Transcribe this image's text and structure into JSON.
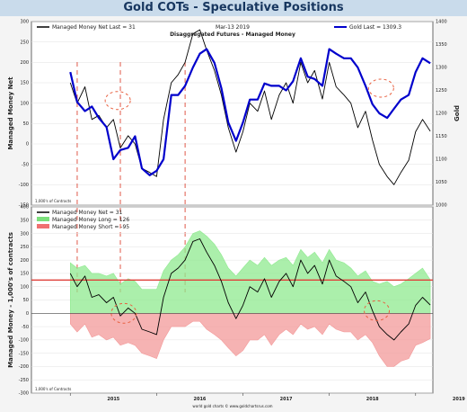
{
  "header": {
    "title": "Gold COTs - Speculative Positions"
  },
  "chart_data": [
    {
      "type": "line",
      "panel": "top",
      "subtitle": "Disaggregated Futures - Managed Money",
      "date_label": "Mar-13  2019",
      "ylabel_left": "Managed Money Net",
      "ylabel_right": "Gold",
      "units_note": "1,000's of Contracts",
      "ylim_left": [
        -150,
        300
      ],
      "ylim_right": [
        1000,
        1400
      ],
      "yticks_left": [
        "300",
        "250",
        "200",
        "150",
        "100",
        "50",
        "0",
        "-50",
        "-100",
        "-150"
      ],
      "yticks_right": [
        "1400",
        "1350",
        "1300",
        "1250",
        "1200",
        "1150",
        "1100",
        "1050",
        "1000"
      ],
      "legend_left": {
        "text": "Managed Money Net   Last = 31",
        "color": "#000000"
      },
      "legend_right": {
        "text": "Gold  Last = 1309.3",
        "color": "#0000cc"
      },
      "x": [
        2015.0,
        2015.08,
        2015.17,
        2015.25,
        2015.33,
        2015.42,
        2015.5,
        2015.58,
        2015.67,
        2015.75,
        2015.83,
        2015.92,
        2016.0,
        2016.08,
        2016.17,
        2016.25,
        2016.33,
        2016.42,
        2016.5,
        2016.58,
        2016.67,
        2016.75,
        2016.83,
        2016.92,
        2017.0,
        2017.08,
        2017.17,
        2017.25,
        2017.33,
        2017.42,
        2017.5,
        2017.58,
        2017.67,
        2017.75,
        2017.83,
        2017.92,
        2018.0,
        2018.08,
        2018.17,
        2018.25,
        2018.33,
        2018.42,
        2018.5,
        2018.58,
        2018.67,
        2018.75,
        2018.83,
        2018.92,
        2019.0,
        2019.08,
        2019.17
      ],
      "series": [
        {
          "name": "Managed Money Net",
          "color": "#000000",
          "axis": "left",
          "values": [
            150,
            100,
            140,
            60,
            70,
            40,
            60,
            -10,
            20,
            0,
            -60,
            -70,
            -80,
            60,
            150,
            170,
            200,
            270,
            280,
            230,
            180,
            120,
            40,
            -20,
            30,
            100,
            80,
            130,
            60,
            120,
            150,
            100,
            200,
            150,
            180,
            110,
            200,
            140,
            120,
            100,
            40,
            80,
            10,
            -50,
            -80,
            -100,
            -70,
            -40,
            30,
            60,
            31
          ]
        },
        {
          "name": "Gold",
          "color": "#0000cc",
          "axis": "right",
          "values": [
            1290,
            1225,
            1205,
            1215,
            1190,
            1170,
            1100,
            1120,
            1125,
            1150,
            1080,
            1065,
            1075,
            1100,
            1240,
            1240,
            1260,
            1300,
            1330,
            1340,
            1310,
            1255,
            1180,
            1140,
            1180,
            1230,
            1230,
            1265,
            1260,
            1260,
            1250,
            1270,
            1320,
            1280,
            1275,
            1260,
            1340,
            1330,
            1320,
            1320,
            1300,
            1260,
            1220,
            1200,
            1190,
            1210,
            1230,
            1240,
            1290,
            1320,
            1309.3
          ]
        }
      ]
    },
    {
      "type": "area",
      "panel": "bottom",
      "ylabel": "Managed Money - 1,000's of contracts",
      "units_note": "1,000's of Contracts",
      "ylim": [
        -300,
        400
      ],
      "yticks": [
        "400",
        "350",
        "300",
        "250",
        "200",
        "150",
        "100",
        "50",
        "0",
        "-50",
        "-100",
        "-150",
        "-200",
        "-250",
        "-300"
      ],
      "xticks": [
        "2015",
        "2016",
        "2017",
        "2018",
        "2019"
      ],
      "reference_line": 125,
      "legend": [
        {
          "text": "Managed Money Net    = 31",
          "color": "#000000"
        },
        {
          "text": "Managed Money Long   = 126",
          "color": "#7be07b"
        },
        {
          "text": "Managed Money Short  = -95",
          "color": "#f07070"
        }
      ],
      "credit": "world gold charts © www.goldchartsrus.com",
      "series": [
        {
          "name": "Managed Money Net",
          "color": "#000000",
          "values": [
            150,
            100,
            140,
            60,
            70,
            40,
            60,
            -10,
            20,
            0,
            -60,
            -70,
            -80,
            60,
            150,
            170,
            200,
            270,
            280,
            230,
            180,
            120,
            40,
            -20,
            30,
            100,
            80,
            130,
            60,
            120,
            150,
            100,
            200,
            150,
            180,
            110,
            200,
            140,
            120,
            100,
            40,
            80,
            10,
            -50,
            -80,
            -100,
            -70,
            -40,
            30,
            60,
            31
          ]
        },
        {
          "name": "Managed Money Long",
          "color": "#66dd66",
          "values": [
            190,
            170,
            180,
            150,
            150,
            140,
            150,
            110,
            130,
            120,
            90,
            90,
            90,
            160,
            200,
            220,
            250,
            300,
            310,
            290,
            260,
            220,
            170,
            140,
            170,
            200,
            180,
            210,
            180,
            200,
            210,
            180,
            240,
            210,
            230,
            190,
            240,
            200,
            190,
            170,
            140,
            160,
            120,
            110,
            120,
            100,
            110,
            130,
            150,
            170,
            126
          ]
        },
        {
          "name": "Managed Money Short",
          "color": "#ee6666",
          "values": [
            -40,
            -70,
            -40,
            -90,
            -80,
            -100,
            -90,
            -120,
            -110,
            -120,
            -150,
            -160,
            -170,
            -100,
            -50,
            -50,
            -50,
            -30,
            -30,
            -60,
            -80,
            -100,
            -130,
            -160,
            -140,
            -100,
            -100,
            -80,
            -120,
            -80,
            -60,
            -80,
            -40,
            -60,
            -50,
            -80,
            -40,
            -60,
            -70,
            -70,
            -100,
            -80,
            -110,
            -160,
            -200,
            -200,
            -180,
            -170,
            -120,
            -110,
            -95
          ]
        }
      ]
    }
  ]
}
